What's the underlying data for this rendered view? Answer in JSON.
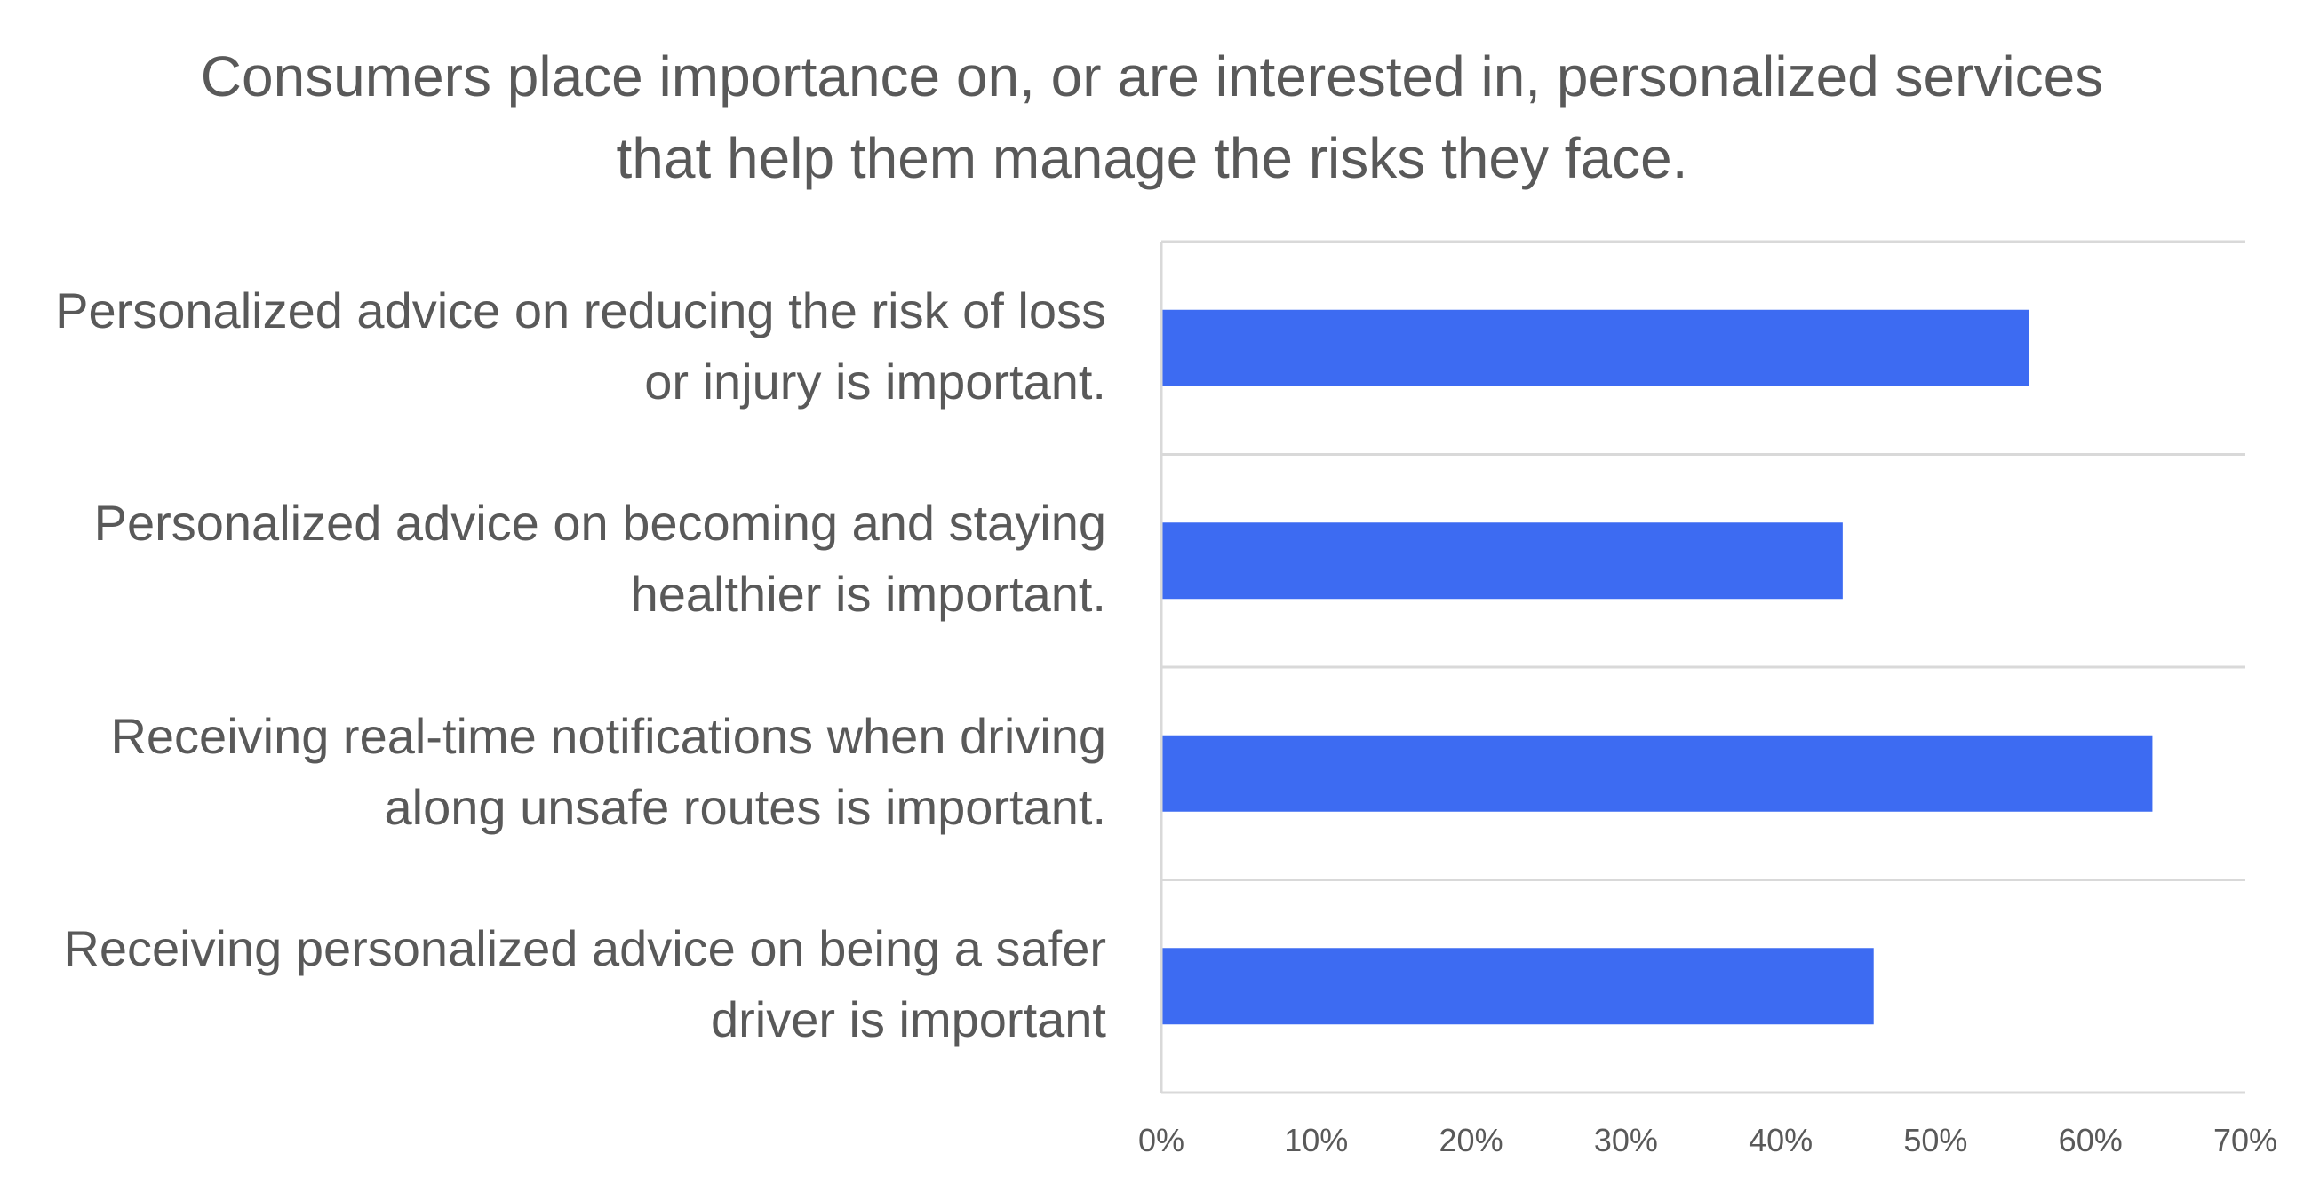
{
  "chart_data": {
    "type": "bar",
    "orientation": "horizontal",
    "title": "Consumers place importance on, or are interested in, personalized services that help them manage the risks they face.",
    "categories": [
      "Personalized advice on reducing the risk of loss or injury is important.",
      "Personalized advice on becoming and staying healthier is important.",
      "Receiving real-time notifications when driving along unsafe routes is important.",
      "Receiving personalized advice on being a safer driver is important"
    ],
    "values": [
      56,
      44,
      64,
      46
    ],
    "xlabel": "",
    "ylabel": "",
    "xlim": [
      0,
      70
    ],
    "xticks": [
      "0%",
      "10%",
      "20%",
      "30%",
      "40%",
      "50%",
      "60%",
      "70%"
    ],
    "grid": "horizontal separators between categories",
    "legend": "none",
    "bar_color": "#3D6BF2",
    "text_color": "#595959",
    "grid_color": "#D9D9D9"
  }
}
